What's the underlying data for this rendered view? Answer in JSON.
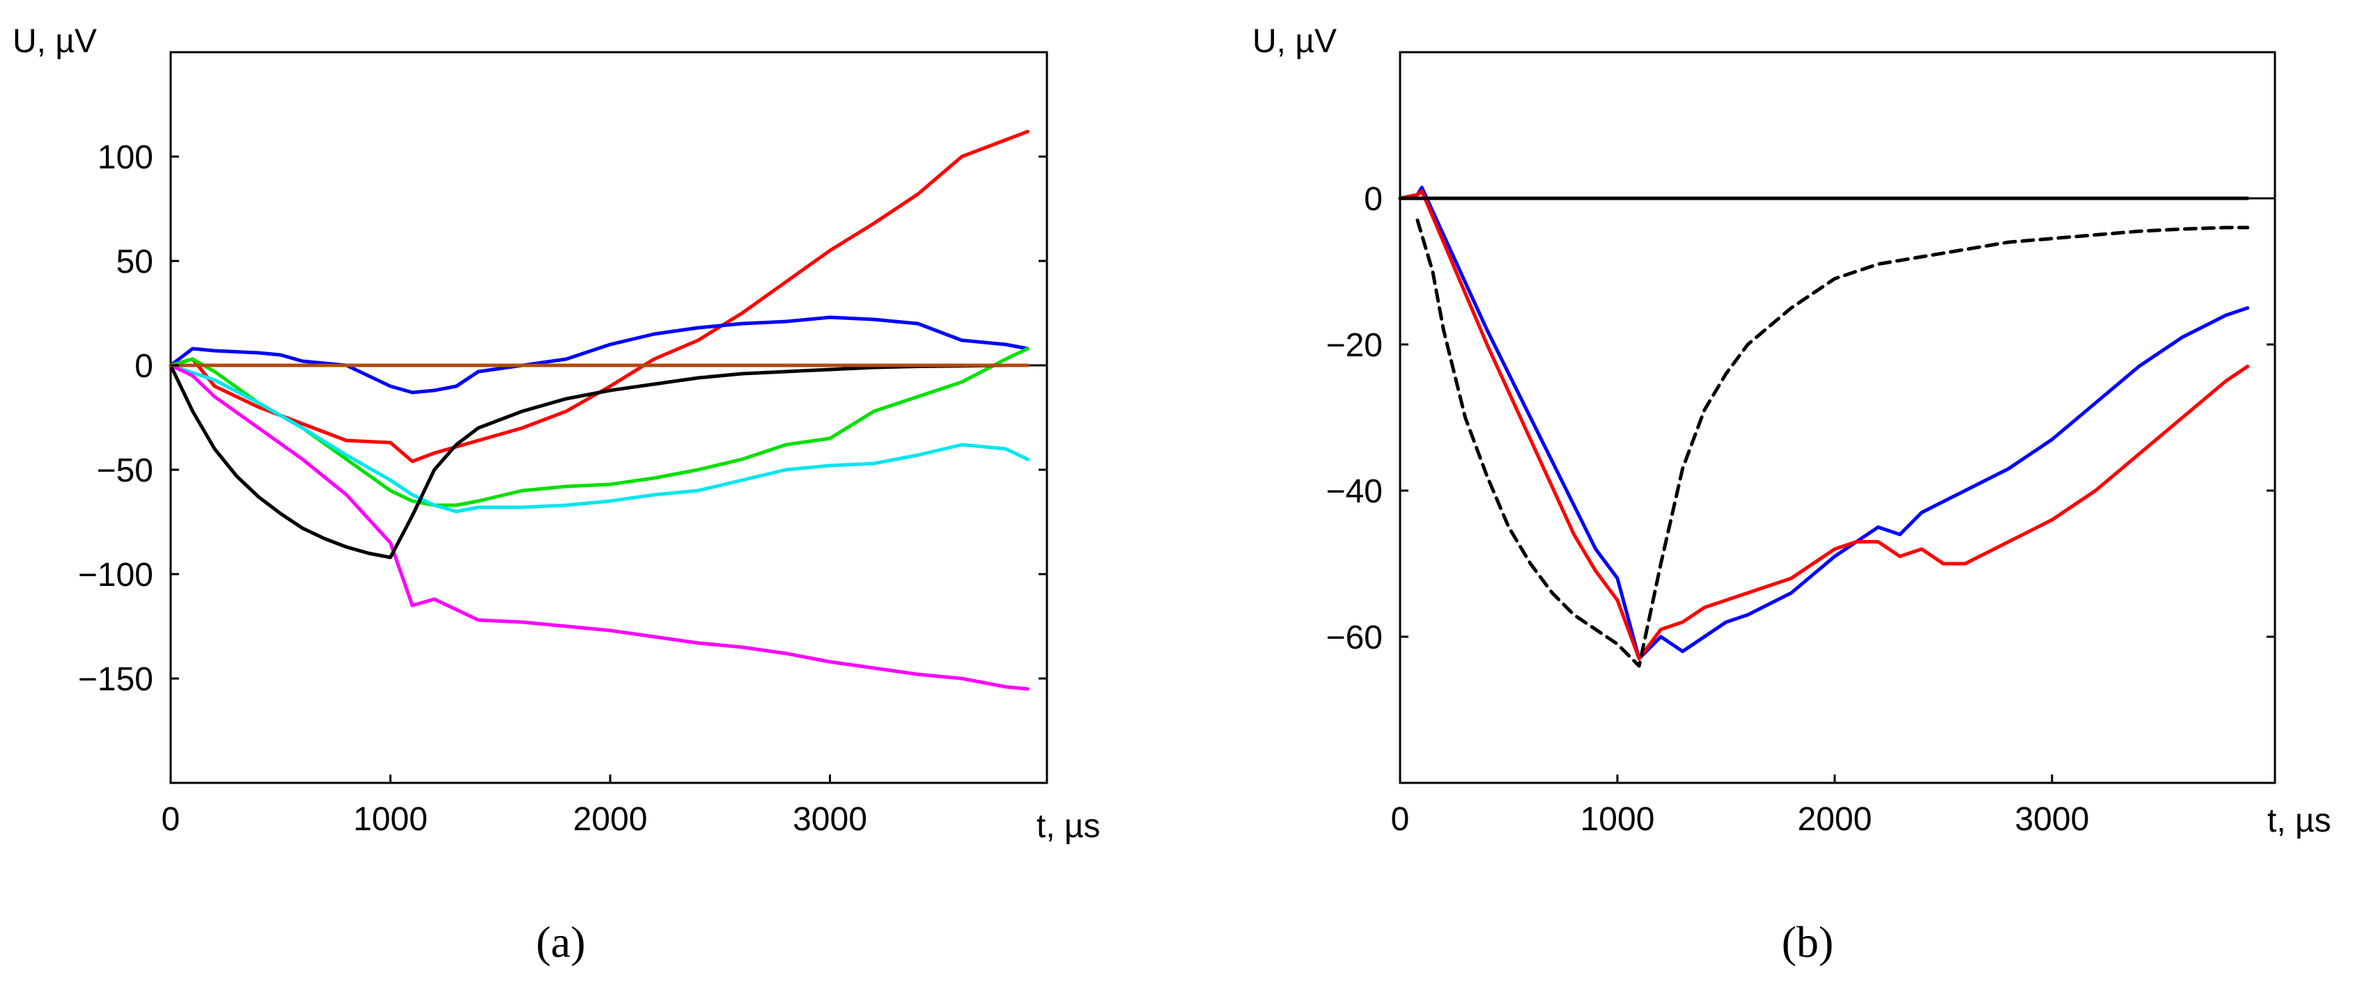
{
  "chart_data": [
    {
      "type": "line",
      "panel": "a",
      "caption": "(a)",
      "ylabel": "U, µV",
      "xlabel": "t, µs",
      "xlim": [
        0,
        4000
      ],
      "ylim": [
        -200,
        150
      ],
      "xticks": [
        0,
        1000,
        2000,
        3000
      ],
      "xtick_labels": [
        "0",
        "1000",
        "2000",
        "3000"
      ],
      "yticks": [
        100,
        50,
        0,
        -50,
        -100,
        -150
      ],
      "ytick_labels": [
        "100",
        "50",
        "0",
        "−50",
        "−100",
        "−150"
      ],
      "grid": false,
      "series": [
        {
          "name": "red",
          "color": "#ff0000",
          "dashed": false,
          "x": [
            0,
            100,
            200,
            400,
            600,
            800,
            1000,
            1100,
            1200,
            1400,
            1600,
            1800,
            2000,
            2200,
            2400,
            2600,
            2800,
            3000,
            3200,
            3400,
            3600,
            3800,
            3900
          ],
          "y": [
            0,
            3,
            -10,
            -20,
            -28,
            -36,
            -37,
            -46,
            -42,
            -36,
            -30,
            -22,
            -10,
            3,
            12,
            25,
            40,
            55,
            68,
            82,
            100,
            108,
            112
          ]
        },
        {
          "name": "blue",
          "color": "#0000ff",
          "dashed": false,
          "x": [
            0,
            100,
            200,
            400,
            500,
            600,
            800,
            1000,
            1100,
            1200,
            1300,
            1400,
            1600,
            1800,
            2000,
            2200,
            2400,
            2600,
            2800,
            3000,
            3200,
            3400,
            3600,
            3800,
            3900
          ],
          "y": [
            0,
            8,
            7,
            6,
            5,
            2,
            0,
            -10,
            -13,
            -12,
            -10,
            -3,
            0,
            3,
            10,
            15,
            18,
            20,
            21,
            23,
            22,
            20,
            12,
            10,
            8
          ]
        },
        {
          "name": "green",
          "color": "#00e000",
          "dashed": false,
          "x": [
            0,
            100,
            200,
            400,
            600,
            800,
            1000,
            1100,
            1200,
            1300,
            1400,
            1600,
            1800,
            2000,
            2200,
            2400,
            2600,
            2800,
            3000,
            3200,
            3400,
            3600,
            3800,
            3900
          ],
          "y": [
            0,
            3,
            -3,
            -18,
            -30,
            -45,
            -60,
            -65,
            -67,
            -67,
            -65,
            -60,
            -58,
            -57,
            -54,
            -50,
            -45,
            -38,
            -35,
            -22,
            -15,
            -8,
            3,
            8
          ]
        },
        {
          "name": "cyan",
          "color": "#00e5ee",
          "dashed": false,
          "x": [
            0,
            200,
            400,
            600,
            800,
            1000,
            1100,
            1200,
            1300,
            1400,
            1600,
            1800,
            2000,
            2200,
            2400,
            2600,
            2800,
            3000,
            3200,
            3400,
            3600,
            3800,
            3900
          ],
          "y": [
            0,
            -7,
            -18,
            -30,
            -43,
            -55,
            -62,
            -67,
            -70,
            -68,
            -68,
            -67,
            -65,
            -62,
            -60,
            -55,
            -50,
            -48,
            -47,
            -43,
            -38,
            -40,
            -45
          ]
        },
        {
          "name": "magenta",
          "color": "#ff00ff",
          "dashed": false,
          "x": [
            0,
            100,
            200,
            400,
            600,
            800,
            1000,
            1100,
            1200,
            1400,
            1600,
            1800,
            2000,
            2200,
            2400,
            2600,
            2800,
            3000,
            3200,
            3400,
            3600,
            3800,
            3900
          ],
          "y": [
            0,
            -5,
            -15,
            -30,
            -45,
            -62,
            -85,
            -115,
            -112,
            -122,
            -123,
            -125,
            -127,
            -130,
            -133,
            -135,
            -138,
            -142,
            -145,
            -148,
            -150,
            -154,
            -155
          ]
        },
        {
          "name": "black",
          "color": "#000000",
          "dashed": false,
          "x": [
            0,
            100,
            200,
            300,
            400,
            500,
            600,
            700,
            800,
            900,
            1000,
            1100,
            1200,
            1300,
            1400,
            1600,
            1800,
            2000,
            2200,
            2400,
            2600,
            2800,
            3000,
            3200,
            3400,
            3600,
            3800,
            3900
          ],
          "y": [
            0,
            -22,
            -40,
            -53,
            -63,
            -71,
            -78,
            -83,
            -87,
            -90,
            -92,
            -72,
            -50,
            -38,
            -30,
            -22,
            -16,
            -12,
            -9,
            -6,
            -4,
            -3,
            -2,
            -1,
            -0.5,
            -0.3,
            0,
            0
          ]
        },
        {
          "name": "brown",
          "color": "#b04a10",
          "dashed": false,
          "x": [
            0,
            3900
          ],
          "y": [
            0,
            0
          ]
        }
      ]
    },
    {
      "type": "line",
      "panel": "b",
      "caption": "(b)",
      "ylabel": "U, µV",
      "xlabel": "t, µs",
      "xlim": [
        0,
        4000
      ],
      "ylim": [
        -80,
        20
      ],
      "xticks": [
        0,
        1000,
        2000,
        3000
      ],
      "xtick_labels": [
        "0",
        "1000",
        "2000",
        "3000"
      ],
      "yticks": [
        0,
        -20,
        -40,
        -60
      ],
      "ytick_labels": [
        "0",
        "−20",
        "−40",
        "−60"
      ],
      "grid": false,
      "series": [
        {
          "name": "blue",
          "color": "#0000ff",
          "dashed": false,
          "x": [
            0,
            80,
            100,
            200,
            400,
            600,
            800,
            900,
            1000,
            1100,
            1200,
            1300,
            1400,
            1500,
            1600,
            1800,
            2000,
            2200,
            2300,
            2400,
            2600,
            2800,
            3000,
            3200,
            3400,
            3600,
            3800,
            3900
          ],
          "y": [
            0,
            0.5,
            1.5,
            -5,
            -18,
            -30,
            -42,
            -48,
            -52,
            -63,
            -60,
            -62,
            -60,
            -58,
            -57,
            -54,
            -49,
            -45,
            -46,
            -43,
            -40,
            -37,
            -33,
            -28,
            -23,
            -19,
            -16,
            -15
          ]
        },
        {
          "name": "red",
          "color": "#ff0000",
          "dashed": false,
          "x": [
            0,
            80,
            100,
            200,
            400,
            600,
            800,
            900,
            1000,
            1100,
            1200,
            1300,
            1400,
            1500,
            1600,
            1800,
            2000,
            2100,
            2200,
            2300,
            2400,
            2500,
            2600,
            2800,
            3000,
            3200,
            3400,
            3600,
            3800,
            3900
          ],
          "y": [
            0,
            0.5,
            1,
            -6,
            -20,
            -33,
            -46,
            -51,
            -55,
            -63,
            -59,
            -58,
            -56,
            -55,
            -54,
            -52,
            -48,
            -47,
            -47,
            -49,
            -48,
            -50,
            -50,
            -47,
            -44,
            -40,
            -35,
            -30,
            -25,
            -23
          ]
        },
        {
          "name": "black-dashed",
          "color": "#000000",
          "dashed": true,
          "x": [
            80,
            150,
            200,
            300,
            400,
            500,
            600,
            700,
            800,
            900,
            1000,
            1100,
            1200,
            1300,
            1400,
            1500,
            1600,
            1800,
            2000,
            2200,
            2400,
            2600,
            2800,
            3000,
            3200,
            3400,
            3600,
            3800,
            3900
          ],
          "y": [
            -3,
            -10,
            -18,
            -30,
            -38,
            -45,
            -50,
            -54,
            -57,
            -59,
            -61,
            -64,
            -50,
            -37,
            -29,
            -24,
            -20,
            -15,
            -11,
            -9,
            -8,
            -7,
            -6,
            -5.5,
            -5,
            -4.5,
            -4.2,
            -4,
            -4
          ]
        },
        {
          "name": "black-baseline",
          "color": "#000000",
          "dashed": false,
          "x": [
            0,
            3900
          ],
          "y": [
            0,
            0
          ]
        }
      ]
    }
  ]
}
